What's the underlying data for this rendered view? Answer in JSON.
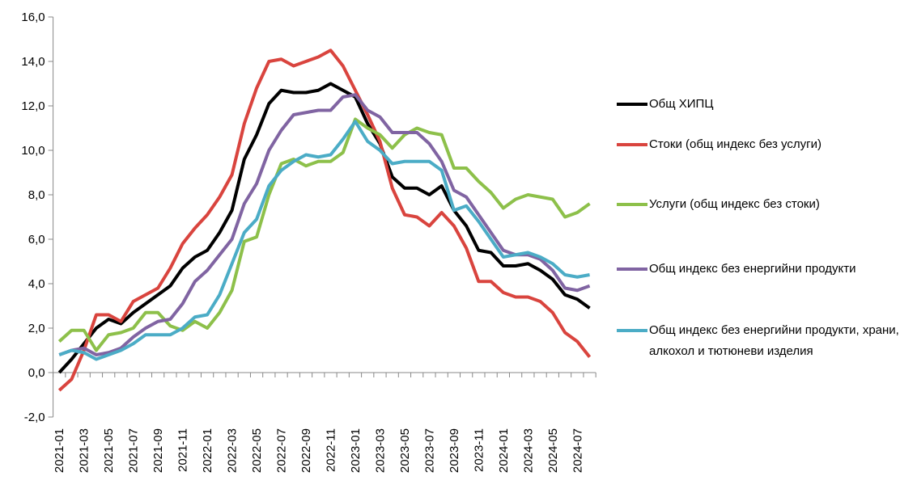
{
  "chart_data": {
    "type": "line",
    "categories": [
      "2021-01",
      null,
      "2021-03",
      null,
      "2021-05",
      null,
      "2021-07",
      null,
      "2021-09",
      null,
      "2021-11",
      null,
      "2022-01",
      null,
      "2022-03",
      null,
      "2022-05",
      null,
      "2022-07",
      null,
      "2022-09",
      null,
      "2022-11",
      null,
      "2023-01",
      null,
      "2023-03",
      null,
      "2023-05",
      null,
      "2023-07",
      null,
      "2023-09",
      null,
      "2023-11",
      null,
      "2024-01",
      null,
      "2024-03",
      null,
      "2024-05",
      null,
      "2024-07",
      null
    ],
    "series": [
      {
        "name": "Общ ХИПЦ",
        "color": "#000000",
        "values": [
          0.0,
          0.6,
          1.3,
          2.0,
          2.4,
          2.2,
          2.7,
          3.1,
          3.5,
          3.9,
          4.7,
          5.2,
          5.5,
          6.3,
          7.3,
          9.6,
          10.7,
          12.1,
          12.7,
          12.6,
          12.6,
          12.7,
          13.0,
          12.7,
          12.4,
          11.2,
          10.3,
          8.8,
          8.3,
          8.3,
          8.0,
          8.4,
          7.3,
          6.6,
          5.5,
          5.4,
          4.8,
          4.8,
          4.9,
          4.6,
          4.2,
          3.5,
          3.3,
          2.9
        ]
      },
      {
        "name": "Стоки (общ индекс без услуги)",
        "color": "#d9443e",
        "values": [
          -0.8,
          -0.3,
          1.0,
          2.6,
          2.6,
          2.3,
          3.2,
          3.5,
          3.8,
          4.7,
          5.8,
          6.5,
          7.1,
          7.9,
          8.9,
          11.2,
          12.8,
          14.0,
          14.1,
          13.8,
          14.0,
          14.2,
          14.5,
          13.8,
          12.7,
          11.6,
          10.4,
          8.3,
          7.1,
          7.0,
          6.6,
          7.2,
          6.6,
          5.6,
          4.1,
          4.1,
          3.6,
          3.4,
          3.4,
          3.2,
          2.7,
          1.8,
          1.4,
          0.7
        ]
      },
      {
        "name": "Услуги (общ индекс без стоки)",
        "color": "#8dc04a",
        "values": [
          1.4,
          1.9,
          1.9,
          1.0,
          1.7,
          1.8,
          2.0,
          2.7,
          2.7,
          2.1,
          1.9,
          2.3,
          2.0,
          2.7,
          3.7,
          5.9,
          6.1,
          8.0,
          9.4,
          9.6,
          9.3,
          9.5,
          9.5,
          9.9,
          11.4,
          11.0,
          10.7,
          10.1,
          10.7,
          11.0,
          10.8,
          10.7,
          9.2,
          9.2,
          8.6,
          8.1,
          7.4,
          7.8,
          8.0,
          7.9,
          7.8,
          7.0,
          7.2,
          7.6
        ]
      },
      {
        "name": "Общ индекс без енергийни продукти",
        "color": "#8064a2",
        "values": [
          0.8,
          1.0,
          1.1,
          0.8,
          0.9,
          1.1,
          1.6,
          2.0,
          2.3,
          2.4,
          3.1,
          4.1,
          4.6,
          5.3,
          6.0,
          7.6,
          8.5,
          10.0,
          10.9,
          11.6,
          11.7,
          11.8,
          11.8,
          12.4,
          12.5,
          11.8,
          11.5,
          10.8,
          10.8,
          10.8,
          10.3,
          9.5,
          8.2,
          7.9,
          7.1,
          6.3,
          5.5,
          5.3,
          5.3,
          5.1,
          4.6,
          3.8,
          3.7,
          3.9
        ]
      },
      {
        "name": "Общ индекс без енергийни продукти, храни, алкохол и тютюневи изделия",
        "color": "#4bacc6",
        "values": [
          0.8,
          1.0,
          0.9,
          0.6,
          0.8,
          1.0,
          1.3,
          1.7,
          1.7,
          1.7,
          2.0,
          2.5,
          2.6,
          3.5,
          4.9,
          6.3,
          6.9,
          8.4,
          9.1,
          9.5,
          9.8,
          9.7,
          9.8,
          10.5,
          11.3,
          10.4,
          10.0,
          9.4,
          9.5,
          9.5,
          9.5,
          9.1,
          7.3,
          7.5,
          6.8,
          6.0,
          5.2,
          5.3,
          5.4,
          5.2,
          4.9,
          4.4,
          4.3,
          4.4
        ]
      }
    ],
    "ylim": [
      -2,
      16
    ],
    "yticks": [
      {
        "value": -2,
        "label": "-2,0"
      },
      {
        "value": 0,
        "label": "0,0"
      },
      {
        "value": 2,
        "label": "2,0"
      },
      {
        "value": 4,
        "label": "4,0"
      },
      {
        "value": 6,
        "label": "6,0"
      },
      {
        "value": 8,
        "label": "8,0"
      },
      {
        "value": 10,
        "label": "10,0"
      },
      {
        "value": 12,
        "label": "12,0"
      },
      {
        "value": 14,
        "label": "14,0"
      },
      {
        "value": 16,
        "label": "16,0"
      }
    ],
    "grid": false,
    "legend": "right"
  }
}
